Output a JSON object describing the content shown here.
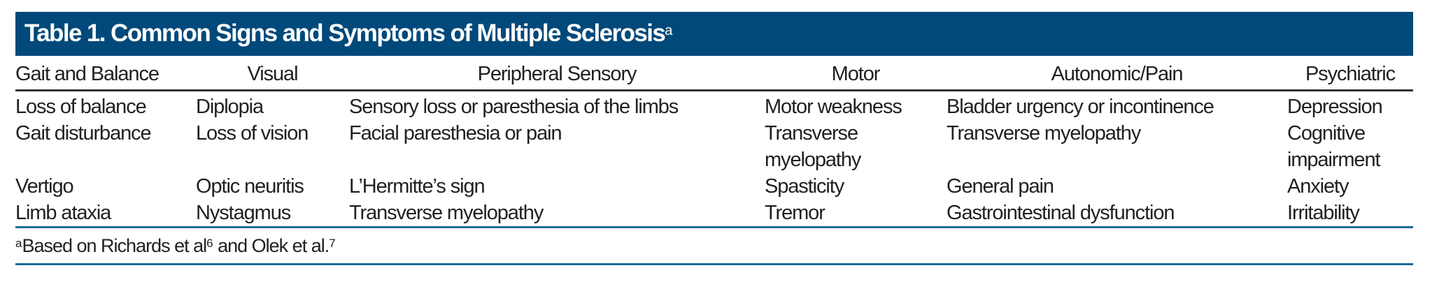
{
  "table": {
    "title": "Table 1. Common Signs and Symptoms of Multiple Sclerosis",
    "title_marker": "a",
    "header_color": "#00497a",
    "columns": [
      "Gait and Balance",
      "Visual",
      "Peripheral Sensory",
      "Motor",
      "Autonomic/Pain",
      "Psychiatric"
    ],
    "rows": [
      [
        "Loss of balance",
        "Diplopia",
        "Sensory loss or paresthesia of the limbs",
        "Motor weakness",
        "Bladder urgency or incontinence",
        "Depression"
      ],
      [
        "Gait disturbance",
        "Loss of vision",
        "Facial paresthesia or pain",
        "Transverse myelopathy",
        "Transverse myelopathy",
        "Cognitive impairment"
      ],
      [
        "Vertigo",
        "Optic neuritis",
        "L’Hermitte’s sign",
        "Spasticity",
        "General pain",
        "Anxiety"
      ],
      [
        "Limb ataxia",
        "Nystagmus",
        "Transverse myelopathy",
        "Tremor",
        "Gastrointestinal dysfunction",
        "Irritability"
      ]
    ],
    "footnote": {
      "marker": "a",
      "text1": "Based on Richards et al",
      "ref1": "6",
      "text2": " and Olek et al.",
      "ref2": "7"
    }
  }
}
